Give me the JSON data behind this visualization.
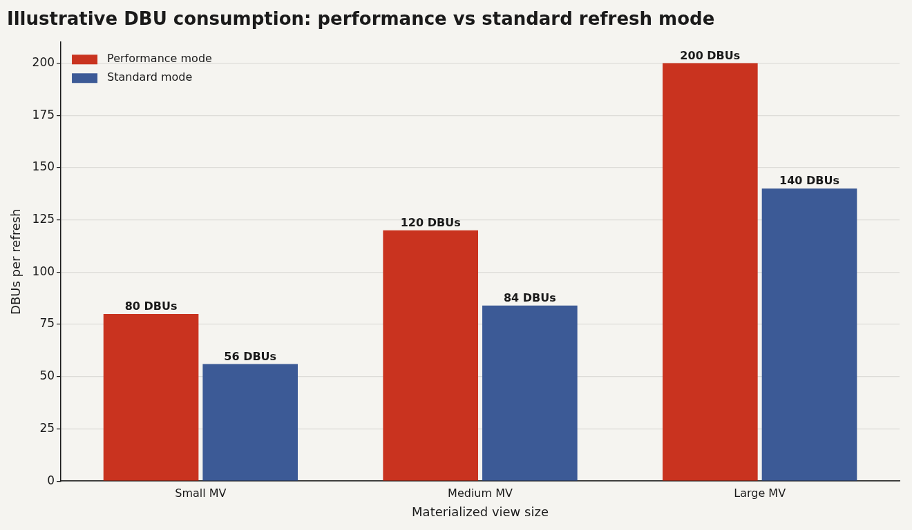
{
  "chart_data": {
    "type": "bar",
    "title": "Illustrative DBU consumption: performance vs standard refresh mode",
    "xlabel": "Materialized view size",
    "ylabel": "DBUs per refresh",
    "categories": [
      "Small MV",
      "Medium MV",
      "Large MV"
    ],
    "series": [
      {
        "name": "Performance mode",
        "color": "#c9331f",
        "values": [
          80,
          120,
          200
        ],
        "value_labels": [
          "80 DBUs",
          "120 DBUs",
          "200 DBUs"
        ]
      },
      {
        "name": "Standard mode",
        "color": "#3c5a96",
        "values": [
          56,
          84,
          140
        ],
        "value_labels": [
          "56 DBUs",
          "84 DBUs",
          "140 DBUs"
        ]
      }
    ],
    "ylim": [
      0,
      210
    ],
    "yticks": [
      0,
      25,
      50,
      75,
      100,
      125,
      150,
      175,
      200
    ],
    "grid": "y",
    "legend": "top left"
  }
}
